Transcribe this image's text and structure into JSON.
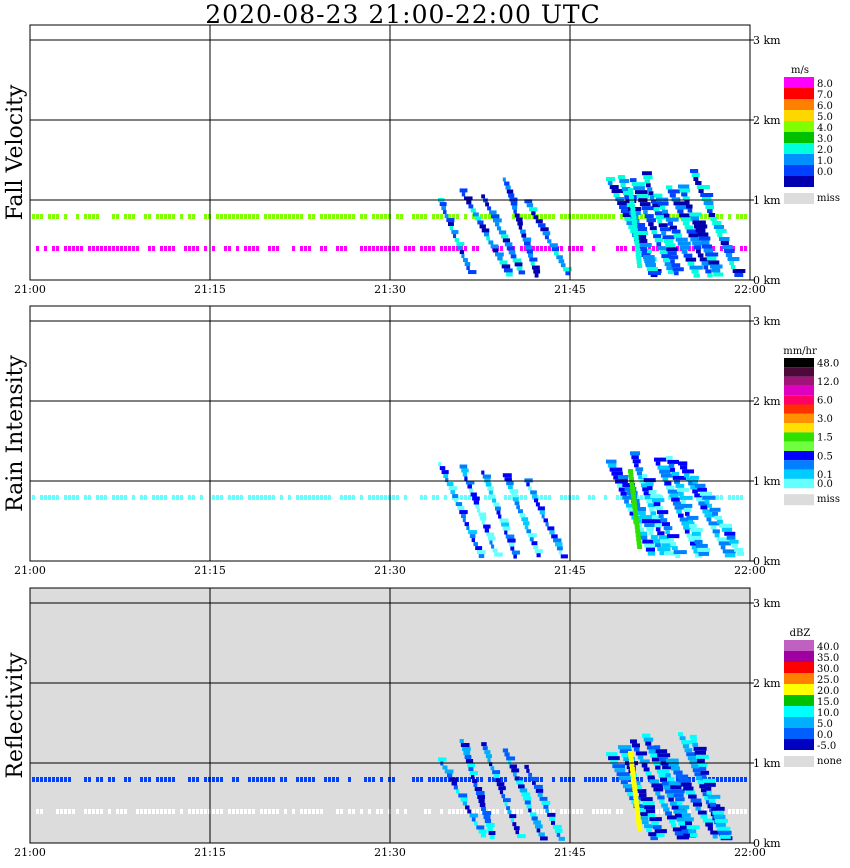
{
  "title": "2020-08-23  21:00-22:00 UTC",
  "time_ticks": [
    "21:00",
    "21:15",
    "21:30",
    "21:45",
    "22:00"
  ],
  "height_ticks": [
    "0 km",
    "1 km",
    "2 km",
    "3 km"
  ],
  "panels": [
    {
      "label": "Fall Velocity",
      "unit": "m/s",
      "background": "#ffffff",
      "colorbar": [
        {
          "label": "8.0",
          "color": "#ff00ff"
        },
        {
          "label": "7.0",
          "color": "#ff0000"
        },
        {
          "label": "6.0",
          "color": "#ff7f00"
        },
        {
          "label": "5.0",
          "color": "#ffd700"
        },
        {
          "label": "4.0",
          "color": "#7fff00"
        },
        {
          "label": "3.0",
          "color": "#00c000"
        },
        {
          "label": "2.0",
          "color": "#00ffdd"
        },
        {
          "label": "1.0",
          "color": "#0090ff"
        },
        {
          "label": "0.0",
          "color": "#0040ff"
        },
        {
          "label": "",
          "color": "#0000b0"
        }
      ],
      "miss_label": "miss"
    },
    {
      "label": "Rain Intensity",
      "unit": "mm/hr",
      "background": "#ffffff",
      "colorbar": [
        {
          "label": "48.0",
          "color": "#000000"
        },
        {
          "label": "",
          "color": "#4b0a3a"
        },
        {
          "label": "12.0",
          "color": "#a0147a"
        },
        {
          "label": "",
          "color": "#e000c0"
        },
        {
          "label": "6.0",
          "color": "#ff0066"
        },
        {
          "label": "",
          "color": "#ff3000"
        },
        {
          "label": "3.0",
          "color": "#ff9000"
        },
        {
          "label": "",
          "color": "#ffe000"
        },
        {
          "label": "1.5",
          "color": "#30e000"
        },
        {
          "label": "",
          "color": "#70ff40"
        },
        {
          "label": "0.5",
          "color": "#0000ff"
        },
        {
          "label": "",
          "color": "#0080ff"
        },
        {
          "label": "0.1",
          "color": "#00ccff"
        },
        {
          "label": "0.0",
          "color": "#66ffff"
        }
      ],
      "miss_label": "miss"
    },
    {
      "label": "Reflectivity",
      "unit": "dBZ",
      "background": "#dcdcdc",
      "colorbar": [
        {
          "label": "40.0",
          "color": "#c060c0"
        },
        {
          "label": "35.0",
          "color": "#a000a0"
        },
        {
          "label": "30.0",
          "color": "#ff0000"
        },
        {
          "label": "25.0",
          "color": "#ff8000"
        },
        {
          "label": "20.0",
          "color": "#ffff00"
        },
        {
          "label": "15.0",
          "color": "#00c000"
        },
        {
          "label": "10.0",
          "color": "#00ffff"
        },
        {
          "label": "5.0",
          "color": "#00b0ff"
        },
        {
          "label": "0.0",
          "color": "#0060ff"
        },
        {
          "label": "-5.0",
          "color": "#0000c0"
        }
      ],
      "miss_label": "none"
    }
  ],
  "chart_data": {
    "type": "heatmap",
    "x_range": [
      "21:00",
      "22:00"
    ],
    "y_range_km": [
      0,
      3.2
    ],
    "grid": true,
    "series": [
      {
        "name": "Fall Velocity",
        "background_bands_km": [
          {
            "height": 0.8,
            "color": "#7fff00"
          },
          {
            "height": 0.4,
            "color": "#ff00ff"
          }
        ]
      },
      {
        "name": "Rain Intensity",
        "background_bands_km": [
          {
            "height": 0.8,
            "color": "#66ffff"
          }
        ]
      },
      {
        "name": "Reflectivity",
        "background_bands_km": [
          {
            "height": 0.8,
            "color": "#0040ff"
          },
          {
            "height": 0.4,
            "color": "#ffffff"
          }
        ]
      }
    ],
    "precipitation_cells": [
      {
        "start": "21:34",
        "end": "21:43",
        "top_km": 1.3
      },
      {
        "start": "21:48",
        "end": "21:56",
        "top_km": 1.4
      }
    ]
  }
}
